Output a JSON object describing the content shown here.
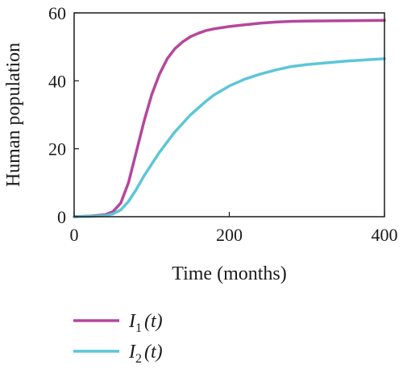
{
  "chart_data": {
    "type": "line",
    "xlabel": "Time (months)",
    "ylabel": "Human population",
    "xlim": [
      0,
      400
    ],
    "ylim": [
      0,
      60
    ],
    "xticks": [
      0,
      200,
      400
    ],
    "yticks": [
      0,
      20,
      40,
      60
    ],
    "grid": false,
    "legend_position": "bottom-left",
    "series": [
      {
        "name": "I",
        "subscript": "1",
        "suffix": "(t)",
        "color": "#b5479a",
        "x": [
          0,
          20,
          40,
          50,
          60,
          70,
          80,
          90,
          100,
          110,
          120,
          130,
          140,
          150,
          160,
          170,
          180,
          200,
          220,
          240,
          260,
          280,
          300,
          350,
          400
        ],
        "y": [
          0,
          0.2,
          0.6,
          1.5,
          4,
          10,
          19,
          28,
          36,
          42,
          46.5,
          49.5,
          51.5,
          53,
          54,
          54.8,
          55.3,
          56,
          56.5,
          57,
          57.3,
          57.5,
          57.6,
          57.7,
          57.8
        ]
      },
      {
        "name": "I",
        "subscript": "2",
        "suffix": "(t)",
        "color": "#5cc6d8",
        "x": [
          0,
          20,
          40,
          50,
          60,
          70,
          80,
          90,
          100,
          110,
          120,
          130,
          140,
          150,
          160,
          170,
          180,
          200,
          220,
          240,
          260,
          280,
          300,
          350,
          400
        ],
        "y": [
          0,
          0.1,
          0.3,
          0.8,
          2,
          4.5,
          8,
          12,
          15.5,
          19,
          22,
          25,
          27.5,
          30,
          32,
          34,
          35.8,
          38.5,
          40.5,
          42,
          43.2,
          44.2,
          44.8,
          45.8,
          46.5
        ]
      }
    ]
  }
}
